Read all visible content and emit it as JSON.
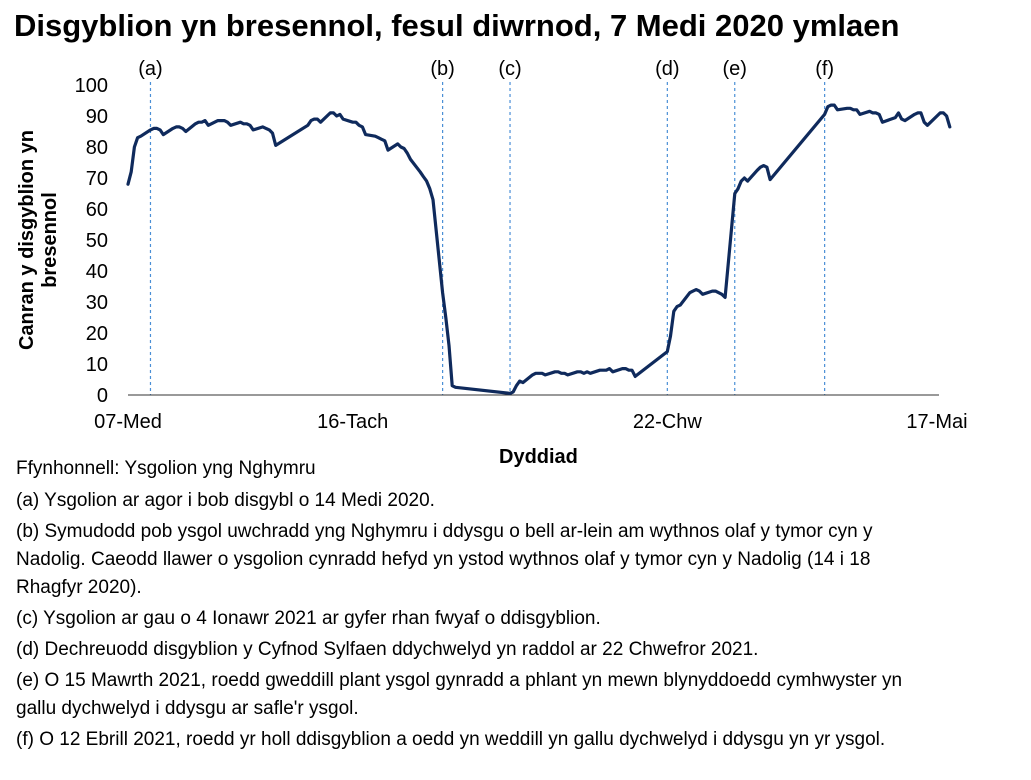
{
  "title": "Disgyblion yn bresennol, fesul diwrnod, 7 Medi 2020 ymlaen",
  "source": "Ffynhonnell: Ysgolion yng Nghymru",
  "notes": [
    {
      "text": "(a) Ysgolion ar agor i bob disgybl o 14 Medi 2020."
    },
    {
      "text": "(b) Symudodd pob ysgol uwchradd yng Nghymru i ddysgu o bell ar-lein am wythnos olaf y tymor cyn y Nadolig. Caeodd llawer o ysgolion cynradd hefyd yn ystod wythnos olaf y tymor cyn y Nadolig (14 i 18 Rhagfyr 2020)."
    },
    {
      "text": "(c) Ysgolion ar gau o 4 Ionawr 2021 ar gyfer rhan fwyaf o ddisgyblion."
    },
    {
      "text": "(d) Dechreuodd disgyblion y Cyfnod Sylfaen ddychwelyd yn raddol ar 22 Chwefror 2021."
    },
    {
      "text": "(e) O 15 Mawrth 2021, roedd gweddill plant ysgol gynradd a phlant yn mewn blynyddoedd cymhwyster yn gallu dychwelyd i ddysgu ar safle'r ysgol."
    },
    {
      "text": "(f) O 12 Ebrill 2021, roedd yr holl ddisgyblion a oedd yn weddill yn gallu dychwelyd i ddysgu yn yr ysgol."
    }
  ],
  "colors": {
    "line": "#0f2a5c",
    "event_line": "#4a8fd6"
  },
  "chart_data": {
    "type": "line",
    "title": "Disgyblion yn bresennol, fesul diwrnod, 7 Medi 2020 ymlaen",
    "xlabel": "Dyddiad",
    "ylabel": "Canran y disgyblion yn bresennol",
    "ylim": [
      0,
      100
    ],
    "yticks": [
      0,
      10,
      20,
      30,
      40,
      50,
      60,
      70,
      80,
      90,
      100
    ],
    "x_tick_labels": [
      {
        "date": "2020-09-07",
        "label": "07-Med"
      },
      {
        "date": "2020-11-16",
        "label": "16-Tach"
      },
      {
        "date": "2021-02-22",
        "label": "22-Chw"
      },
      {
        "date": "2021-05-17",
        "label": "17-Mai"
      }
    ],
    "xlim": [
      "2020-09-07",
      "2021-05-17"
    ],
    "grid": false,
    "legend": "none",
    "events": [
      {
        "label": "(a)",
        "date": "2020-09-14"
      },
      {
        "label": "(b)",
        "date": "2020-12-14"
      },
      {
        "label": "(c)",
        "date": "2021-01-04"
      },
      {
        "label": "(d)",
        "date": "2021-02-22"
      },
      {
        "label": "(e)",
        "date": "2021-03-15"
      },
      {
        "label": "(f)",
        "date": "2021-04-12"
      }
    ],
    "series": [
      {
        "name": "",
        "points": [
          [
            "2020-09-07",
            68
          ],
          [
            "2020-09-08",
            72
          ],
          [
            "2020-09-09",
            80
          ],
          [
            "2020-09-10",
            83
          ],
          [
            "2020-09-11",
            83.5
          ],
          [
            "2020-09-14",
            85.5
          ],
          [
            "2020-09-15",
            86
          ],
          [
            "2020-09-16",
            86
          ],
          [
            "2020-09-17",
            85.5
          ],
          [
            "2020-09-18",
            84
          ],
          [
            "2020-09-21",
            86
          ],
          [
            "2020-09-22",
            86.5
          ],
          [
            "2020-09-23",
            86.5
          ],
          [
            "2020-09-24",
            86
          ],
          [
            "2020-09-25",
            85
          ],
          [
            "2020-09-28",
            87.5
          ],
          [
            "2020-09-29",
            88
          ],
          [
            "2020-09-30",
            88
          ],
          [
            "2020-10-01",
            88.5
          ],
          [
            "2020-10-02",
            87
          ],
          [
            "2020-10-05",
            88.5
          ],
          [
            "2020-10-06",
            88.5
          ],
          [
            "2020-10-07",
            88.5
          ],
          [
            "2020-10-08",
            88
          ],
          [
            "2020-10-09",
            87
          ],
          [
            "2020-10-12",
            88
          ],
          [
            "2020-10-13",
            87.5
          ],
          [
            "2020-10-14",
            87.5
          ],
          [
            "2020-10-15",
            87
          ],
          [
            "2020-10-16",
            85.5
          ],
          [
            "2020-10-19",
            86.5
          ],
          [
            "2020-10-20",
            86
          ],
          [
            "2020-10-21",
            85.5
          ],
          [
            "2020-10-22",
            84.5
          ],
          [
            "2020-10-23",
            80.5
          ],
          [
            "2020-11-02",
            87
          ],
          [
            "2020-11-03",
            88.5
          ],
          [
            "2020-11-04",
            89
          ],
          [
            "2020-11-05",
            89
          ],
          [
            "2020-11-06",
            88
          ],
          [
            "2020-11-09",
            91
          ],
          [
            "2020-11-10",
            91
          ],
          [
            "2020-11-11",
            90
          ],
          [
            "2020-11-12",
            90.5
          ],
          [
            "2020-11-13",
            89
          ],
          [
            "2020-11-16",
            88
          ],
          [
            "2020-11-17",
            88
          ],
          [
            "2020-11-18",
            87
          ],
          [
            "2020-11-19",
            86.5
          ],
          [
            "2020-11-20",
            84
          ],
          [
            "2020-11-23",
            83.5
          ],
          [
            "2020-11-24",
            83
          ],
          [
            "2020-11-25",
            82.5
          ],
          [
            "2020-11-26",
            82
          ],
          [
            "2020-11-27",
            79
          ],
          [
            "2020-11-30",
            81
          ],
          [
            "2020-12-01",
            80
          ],
          [
            "2020-12-02",
            79.5
          ],
          [
            "2020-12-03",
            78
          ],
          [
            "2020-12-04",
            76
          ],
          [
            "2020-12-07",
            72
          ],
          [
            "2020-12-08",
            70.5
          ],
          [
            "2020-12-09",
            69
          ],
          [
            "2020-12-10",
            66.5
          ],
          [
            "2020-12-11",
            63
          ],
          [
            "2020-12-14",
            33
          ],
          [
            "2020-12-15",
            25
          ],
          [
            "2020-12-16",
            16
          ],
          [
            "2020-12-17",
            3
          ],
          [
            "2020-12-18",
            2.5
          ],
          [
            "2021-01-04",
            0.5
          ],
          [
            "2021-01-05",
            1
          ],
          [
            "2021-01-06",
            3
          ],
          [
            "2021-01-07",
            4.5
          ],
          [
            "2021-01-08",
            4
          ],
          [
            "2021-01-11",
            6.5
          ],
          [
            "2021-01-12",
            7
          ],
          [
            "2021-01-13",
            7
          ],
          [
            "2021-01-14",
            7
          ],
          [
            "2021-01-15",
            6.5
          ],
          [
            "2021-01-18",
            7.5
          ],
          [
            "2021-01-19",
            7.5
          ],
          [
            "2021-01-20",
            7
          ],
          [
            "2021-01-21",
            7
          ],
          [
            "2021-01-22",
            6.5
          ],
          [
            "2021-01-25",
            7.5
          ],
          [
            "2021-01-26",
            7.5
          ],
          [
            "2021-01-27",
            7
          ],
          [
            "2021-01-28",
            7.5
          ],
          [
            "2021-01-29",
            7
          ],
          [
            "2021-02-01",
            8
          ],
          [
            "2021-02-02",
            8
          ],
          [
            "2021-02-03",
            8
          ],
          [
            "2021-02-04",
            8.5
          ],
          [
            "2021-02-05",
            7.5
          ],
          [
            "2021-02-08",
            8.5
          ],
          [
            "2021-02-09",
            8.5
          ],
          [
            "2021-02-10",
            8
          ],
          [
            "2021-02-11",
            8
          ],
          [
            "2021-02-12",
            6
          ],
          [
            "2021-02-22",
            14
          ],
          [
            "2021-02-23",
            19
          ],
          [
            "2021-02-24",
            27
          ],
          [
            "2021-02-25",
            28.5
          ],
          [
            "2021-02-26",
            29
          ],
          [
            "2021-03-01",
            33
          ],
          [
            "2021-03-02",
            33.5
          ],
          [
            "2021-03-03",
            34
          ],
          [
            "2021-03-04",
            33.5
          ],
          [
            "2021-03-05",
            32.5
          ],
          [
            "2021-03-08",
            33.5
          ],
          [
            "2021-03-09",
            33.5
          ],
          [
            "2021-03-10",
            33
          ],
          [
            "2021-03-11",
            32.5
          ],
          [
            "2021-03-12",
            31.5
          ],
          [
            "2021-03-15",
            65
          ],
          [
            "2021-03-16",
            66.5
          ],
          [
            "2021-03-17",
            69
          ],
          [
            "2021-03-18",
            70
          ],
          [
            "2021-03-19",
            69
          ],
          [
            "2021-03-22",
            72.5
          ],
          [
            "2021-03-23",
            73.5
          ],
          [
            "2021-03-24",
            74
          ],
          [
            "2021-03-25",
            73.5
          ],
          [
            "2021-03-26",
            69.5
          ],
          [
            "2021-04-12",
            90.5
          ],
          [
            "2021-04-13",
            93
          ],
          [
            "2021-04-14",
            93.5
          ],
          [
            "2021-04-15",
            93.5
          ],
          [
            "2021-04-16",
            92
          ],
          [
            "2021-04-19",
            92.5
          ],
          [
            "2021-04-20",
            92.5
          ],
          [
            "2021-04-21",
            92
          ],
          [
            "2021-04-22",
            92
          ],
          [
            "2021-04-23",
            90.5
          ],
          [
            "2021-04-26",
            91.5
          ],
          [
            "2021-04-27",
            91
          ],
          [
            "2021-04-28",
            91
          ],
          [
            "2021-04-29",
            90.5
          ],
          [
            "2021-04-30",
            88
          ],
          [
            "2021-05-04",
            89.5
          ],
          [
            "2021-05-05",
            91
          ],
          [
            "2021-05-06",
            89
          ],
          [
            "2021-05-07",
            88.5
          ],
          [
            "2021-05-10",
            90.5
          ],
          [
            "2021-05-11",
            91
          ],
          [
            "2021-05-12",
            91
          ],
          [
            "2021-05-13",
            88
          ],
          [
            "2021-05-14",
            87
          ],
          [
            "2021-05-17",
            90
          ],
          [
            "2021-05-18",
            91
          ],
          [
            "2021-05-19",
            91
          ],
          [
            "2021-05-20",
            90
          ],
          [
            "2021-05-21",
            86.5
          ]
        ]
      }
    ]
  }
}
